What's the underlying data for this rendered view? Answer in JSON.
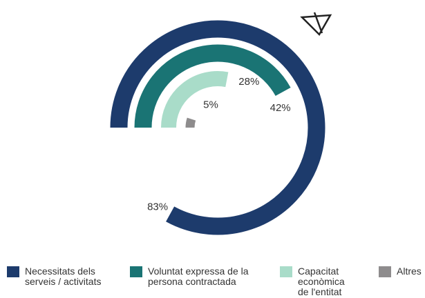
{
  "chart_data": {
    "type": "radial-bar",
    "categories": [
      "Necessitats dels serveis / activitats",
      "Voluntat expressa de la persona contractada",
      "Capacitat econòmica de l'entitat",
      "Altres"
    ],
    "values": [
      83,
      42,
      28,
      5
    ],
    "value_labels": [
      "83%",
      "42%",
      "28%",
      "5%"
    ],
    "colors": [
      "#1d3b6c",
      "#1a7474",
      "#a9dcc9",
      "#8e8c8d"
    ],
    "xlim": [
      0,
      100
    ]
  }
}
